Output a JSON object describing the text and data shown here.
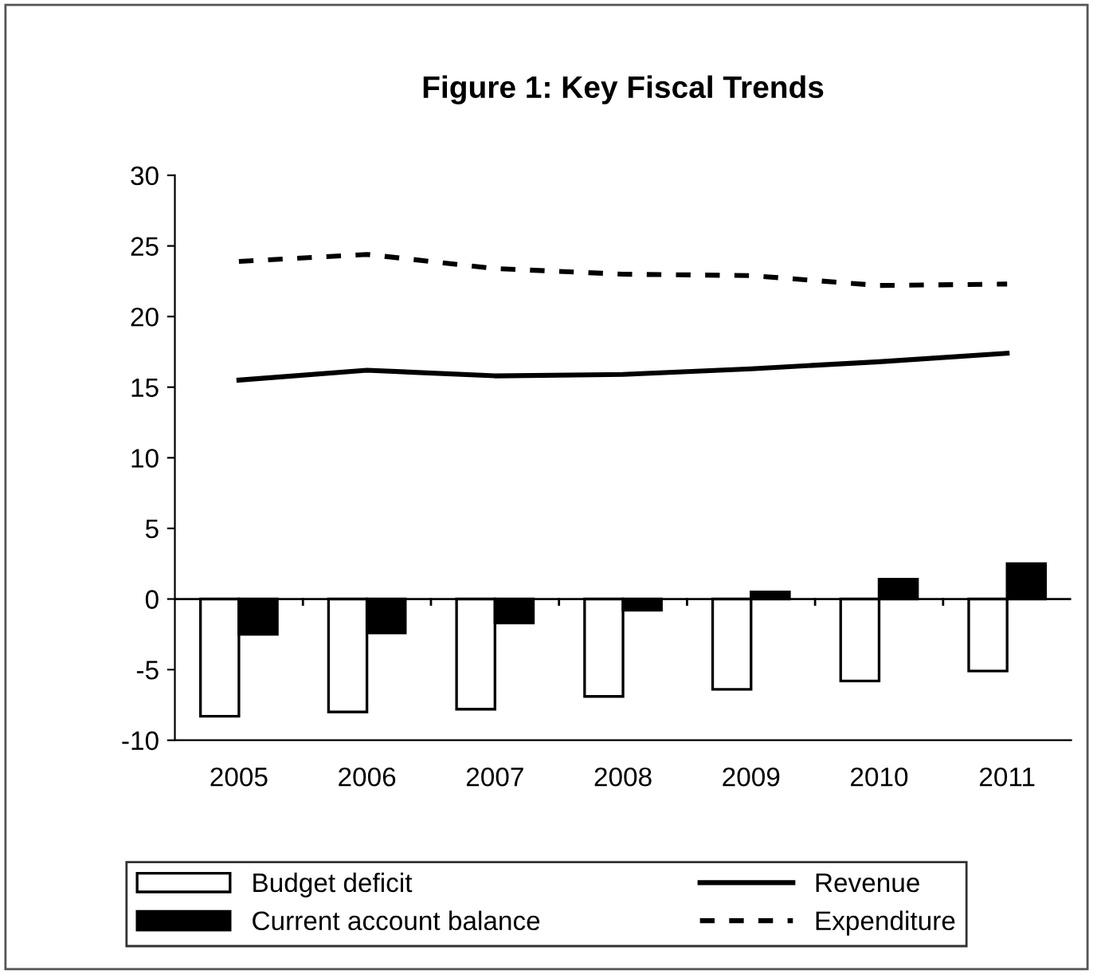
{
  "chart_data": {
    "type": "bar",
    "title": "Figure 1: Key Fiscal Trends",
    "categories": [
      "2005",
      "2006",
      "2007",
      "2008",
      "2009",
      "2010",
      "2011"
    ],
    "series": [
      {
        "name": "Budget deficit",
        "color": "#ffffff",
        "values": [
          -8.3,
          -8.0,
          -7.8,
          -6.9,
          -6.4,
          -5.8,
          -5.1
        ]
      },
      {
        "name": "Current account balance",
        "color": "#000000",
        "values": [
          -2.5,
          -2.4,
          -1.7,
          -0.8,
          0.5,
          1.4,
          2.5
        ]
      },
      {
        "name": "Revenue",
        "type": "line",
        "color": "#000000",
        "line_style": "solid",
        "values": [
          15.5,
          16.2,
          15.8,
          15.9,
          16.3,
          16.8,
          17.4
        ]
      },
      {
        "name": "Expenditure",
        "type": "line",
        "color": "#000000",
        "line_style": "dashed",
        "values": [
          23.9,
          24.4,
          23.4,
          23.0,
          22.9,
          22.2,
          22.3
        ]
      }
    ],
    "ylim": [
      -10,
      30
    ],
    "yticks": [
      -10,
      -5,
      0,
      5,
      10,
      15,
      20,
      25,
      30
    ],
    "legend": "bottom",
    "marker": "none"
  }
}
